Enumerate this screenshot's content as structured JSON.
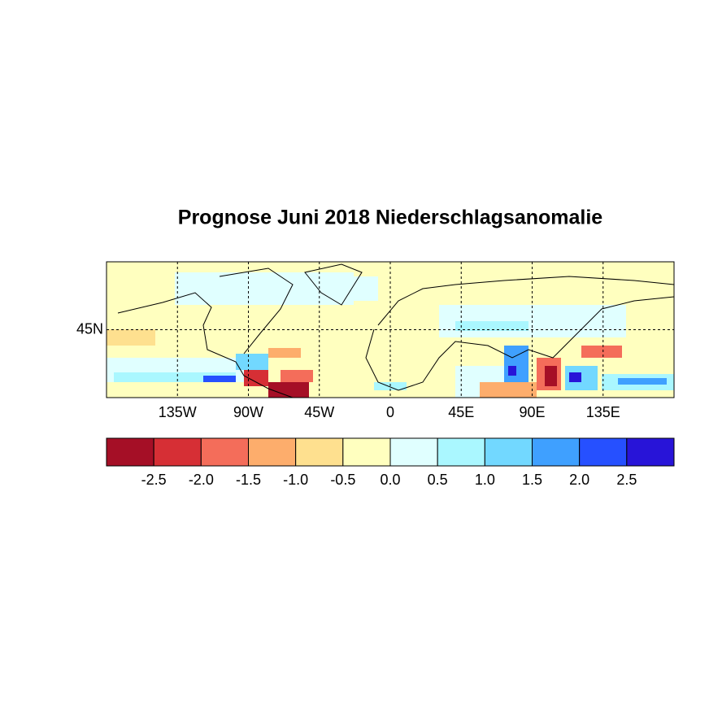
{
  "title": "Prognose Juni 2018 Niederschlagsanomalie",
  "map": {
    "xlim": [
      -180,
      180
    ],
    "ylim": [
      0,
      90
    ],
    "xticks": [
      {
        "value": -135,
        "label": "135W"
      },
      {
        "value": -90,
        "label": "90W"
      },
      {
        "value": -45,
        "label": "45W"
      },
      0,
      {
        "value": 45,
        "label": "45E"
      },
      {
        "value": 90,
        "label": "90E"
      },
      {
        "value": 135,
        "label": "135E"
      }
    ],
    "yticks": [
      {
        "value": 45,
        "label": "45N"
      }
    ]
  },
  "colorbar": {
    "lim": [
      -3,
      3
    ],
    "colors": [
      "#a50f26",
      "#d62f35",
      "#f46d5a",
      "#fdad6c",
      "#fee08f",
      "#ffffbf",
      "#e0ffff",
      "#aaf7ff",
      "#72d8ff",
      "#3fa0ff",
      "#2650ff",
      "#2814d8"
    ],
    "ticks": [
      -2.5,
      {
        "value": -2,
        "label": "-2.0"
      },
      -1.5,
      {
        "value": -1,
        "label": "-1.0"
      },
      -0.5,
      {
        "value": 0,
        "label": "0.0"
      },
      0.5,
      {
        "value": 1,
        "label": "1.0"
      },
      1.5,
      {
        "value": 2,
        "label": "2.0"
      },
      2.5
    ]
  }
}
